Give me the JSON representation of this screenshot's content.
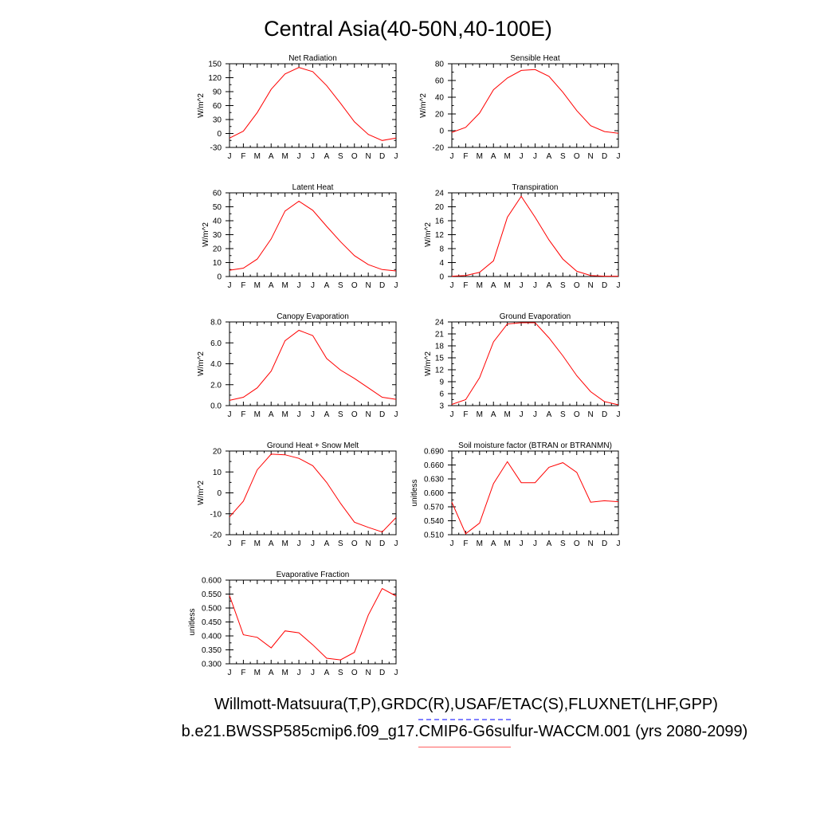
{
  "page": {
    "title": "Central Asia(40-50N,40-100E)",
    "caption_obs": "Willmott-Matsuura(T,P),GRDC(R),USAF/ETAC(S),FLUXNET(LHF,GPP)",
    "caption_case": "b.e21.BWSSP585cmip6.f09_g17.CMIP6-G6sulfur-WACCM.001 (yrs 2080-2099)"
  },
  "style": {
    "line_color": "#ff0000",
    "axis_color": "#000000"
  },
  "chart_data": [
    {
      "type": "line",
      "title": "Net Radiation",
      "ylabel": "W/m^2",
      "categories": [
        "J",
        "F",
        "M",
        "A",
        "M",
        "J",
        "J",
        "A",
        "S",
        "O",
        "N",
        "D",
        "J"
      ],
      "values": [
        -10,
        5,
        45,
        95,
        128,
        142,
        133,
        103,
        65,
        25,
        -2,
        -15,
        -10
      ],
      "ylim": [
        -30,
        150
      ],
      "yticks": [
        "-30",
        "0",
        "30",
        "60",
        "90",
        "120",
        "150"
      ]
    },
    {
      "type": "line",
      "title": "Sensible Heat",
      "ylabel": "W/m^2",
      "categories": [
        "J",
        "F",
        "M",
        "A",
        "M",
        "J",
        "J",
        "A",
        "S",
        "O",
        "N",
        "D",
        "J"
      ],
      "values": [
        -2,
        4,
        21,
        49,
        63,
        72,
        73,
        65,
        46,
        24,
        6,
        -1,
        -3
      ],
      "ylim": [
        -20,
        80
      ],
      "yticks": [
        "-20",
        "0",
        "20",
        "40",
        "60",
        "80"
      ]
    },
    {
      "type": "line",
      "title": "Latent Heat",
      "ylabel": "W/m^2",
      "categories": [
        "J",
        "F",
        "M",
        "A",
        "M",
        "J",
        "J",
        "A",
        "S",
        "O",
        "N",
        "D",
        "J"
      ],
      "values": [
        4.5,
        6,
        12.5,
        27,
        47,
        54,
        47.5,
        36,
        25,
        15,
        8.5,
        5,
        4
      ],
      "ylim": [
        0,
        60
      ],
      "yticks": [
        "0",
        "10",
        "20",
        "30",
        "40",
        "50",
        "60"
      ]
    },
    {
      "type": "line",
      "title": "Transpiration",
      "ylabel": "W/m^2",
      "categories": [
        "J",
        "F",
        "M",
        "A",
        "M",
        "J",
        "J",
        "A",
        "S",
        "O",
        "N",
        "D",
        "J"
      ],
      "values": [
        0.1,
        0.3,
        1.2,
        4.5,
        17,
        23,
        17,
        10.5,
        5,
        1.5,
        0.3,
        0.1,
        0.1
      ],
      "ylim": [
        0,
        24
      ],
      "yticks": [
        "0",
        "4",
        "8",
        "12",
        "16",
        "20",
        "24"
      ]
    },
    {
      "type": "line",
      "title": "Canopy Evaporation",
      "ylabel": "W/m^2",
      "categories": [
        "J",
        "F",
        "M",
        "A",
        "M",
        "J",
        "J",
        "A",
        "S",
        "O",
        "N",
        "D",
        "J"
      ],
      "values": [
        0.5,
        0.8,
        1.7,
        3.3,
        6.2,
        7.2,
        6.7,
        4.5,
        3.4,
        2.6,
        1.7,
        0.8,
        0.6
      ],
      "ylim": [
        0,
        8
      ],
      "yticks": [
        "0.0",
        "2.0",
        "4.0",
        "6.0",
        "8.0"
      ]
    },
    {
      "type": "line",
      "title": "Ground Evaporation",
      "ylabel": "W/m^2",
      "categories": [
        "J",
        "F",
        "M",
        "A",
        "M",
        "J",
        "J",
        "A",
        "S",
        "O",
        "N",
        "D",
        "J"
      ],
      "values": [
        3.3,
        4.5,
        10,
        19,
        23.5,
        23.8,
        23.8,
        20,
        15.5,
        10.5,
        6.5,
        4,
        3.2
      ],
      "ylim": [
        3,
        24
      ],
      "yticks": [
        "3",
        "6",
        "9",
        "12",
        "15",
        "18",
        "21",
        "24"
      ]
    },
    {
      "type": "line",
      "title": "Ground Heat + Snow Melt",
      "ylabel": "W/m^2",
      "categories": [
        "J",
        "F",
        "M",
        "A",
        "M",
        "J",
        "J",
        "A",
        "S",
        "O",
        "N",
        "D",
        "J"
      ],
      "values": [
        -11.5,
        -4,
        11,
        18.5,
        18.2,
        16.5,
        13,
        5,
        -5,
        -14,
        -16.5,
        -18.7,
        -11.8
      ],
      "ylim": [
        -20,
        20
      ],
      "yticks": [
        "-20",
        "-10",
        "0",
        "10",
        "20"
      ]
    },
    {
      "type": "line",
      "title": "Soil moisture factor (BTRAN or BTRANMN)",
      "ylabel": "unitless",
      "categories": [
        "J",
        "F",
        "M",
        "A",
        "M",
        "J",
        "J",
        "A",
        "S",
        "O",
        "N",
        "D",
        "J"
      ],
      "values": [
        0.58,
        0.512,
        0.535,
        0.62,
        0.667,
        0.622,
        0.622,
        0.655,
        0.665,
        0.644,
        0.58,
        0.583,
        0.581
      ],
      "ylim": [
        0.51,
        0.69
      ],
      "yticks": [
        "0.510",
        "0.540",
        "0.570",
        "0.600",
        "0.630",
        "0.660",
        "0.690"
      ]
    },
    {
      "type": "line",
      "title": "Evaporative Fraction",
      "ylabel": "unitless",
      "categories": [
        "J",
        "F",
        "M",
        "A",
        "M",
        "J",
        "J",
        "A",
        "S",
        "O",
        "N",
        "D",
        "J"
      ],
      "values": [
        0.545,
        0.404,
        0.395,
        0.357,
        0.418,
        0.411,
        0.368,
        0.32,
        0.314,
        0.341,
        0.475,
        0.57,
        0.543
      ],
      "ylim": [
        0.3,
        0.6
      ],
      "yticks": [
        "0.300",
        "0.350",
        "0.400",
        "0.450",
        "0.500",
        "0.550",
        "0.600"
      ]
    }
  ]
}
